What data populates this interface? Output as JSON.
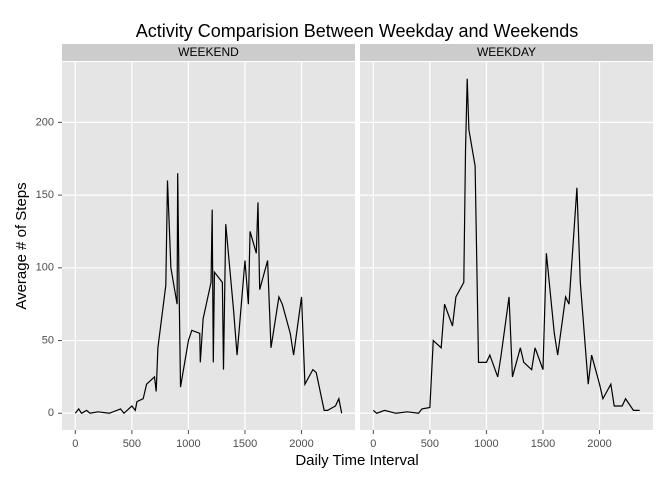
{
  "title": "Activity Comparision Between Weekday and Weekends",
  "x_label": "Daily Time Interval",
  "y_label": "Average # of Steps",
  "chart_data": [
    {
      "type": "line",
      "title": "WEEKEND",
      "x": [
        0,
        30,
        55,
        100,
        130,
        200,
        300,
        400,
        430,
        500,
        530,
        545,
        600,
        630,
        700,
        715,
        730,
        800,
        815,
        830,
        845,
        900,
        905,
        915,
        930,
        1000,
        1030,
        1100,
        1105,
        1130,
        1200,
        1210,
        1220,
        1230,
        1300,
        1310,
        1330,
        1400,
        1430,
        1500,
        1530,
        1545,
        1600,
        1615,
        1630,
        1700,
        1730,
        1800,
        1830,
        1900,
        1930,
        2000,
        2030,
        2100,
        2130,
        2200,
        2230,
        2300,
        2330,
        2355
      ],
      "series": [
        {
          "color": "#000000",
          "values": [
            0,
            3,
            0,
            2,
            0,
            1,
            0,
            3,
            0,
            5,
            2,
            8,
            10,
            20,
            25,
            15,
            45,
            88,
            160,
            130,
            100,
            75,
            165,
            100,
            18,
            50,
            57,
            55,
            35,
            65,
            90,
            140,
            35,
            97,
            90,
            30,
            130,
            70,
            40,
            105,
            75,
            125,
            110,
            145,
            85,
            105,
            45,
            80,
            75,
            55,
            40,
            80,
            20,
            30,
            28,
            2,
            2,
            5,
            10,
            0
          ]
        }
      ],
      "xlim": [
        -117.75,
        2472.75
      ],
      "ylim": [
        -11.5,
        241.5
      ],
      "xticks": [
        0,
        500,
        1000,
        1500,
        2000
      ],
      "yticks": [
        0,
        50,
        100,
        150,
        200
      ],
      "grid": true
    },
    {
      "type": "line",
      "title": "WEEKDAY",
      "x": [
        0,
        30,
        100,
        200,
        300,
        400,
        430,
        500,
        530,
        600,
        630,
        700,
        730,
        800,
        815,
        830,
        845,
        900,
        930,
        1000,
        1030,
        1100,
        1130,
        1200,
        1230,
        1300,
        1330,
        1400,
        1430,
        1500,
        1530,
        1600,
        1630,
        1700,
        1730,
        1800,
        1830,
        1900,
        1930,
        2000,
        2030,
        2100,
        2130,
        2200,
        2230,
        2300,
        2355
      ],
      "series": [
        {
          "color": "#000000",
          "values": [
            2,
            0,
            2,
            0,
            1,
            0,
            3,
            4,
            50,
            45,
            75,
            60,
            80,
            90,
            180,
            230,
            195,
            170,
            35,
            35,
            40,
            25,
            40,
            80,
            25,
            45,
            35,
            30,
            45,
            30,
            110,
            55,
            40,
            80,
            75,
            155,
            90,
            20,
            40,
            20,
            10,
            20,
            5,
            5,
            10,
            2,
            2
          ]
        }
      ],
      "xlim": [
        -117.75,
        2472.75
      ],
      "ylim": [
        -11.5,
        241.5
      ],
      "xticks": [
        0,
        500,
        1000,
        1500,
        2000
      ],
      "yticks": [
        0,
        50,
        100,
        150,
        200
      ],
      "grid": true
    }
  ]
}
